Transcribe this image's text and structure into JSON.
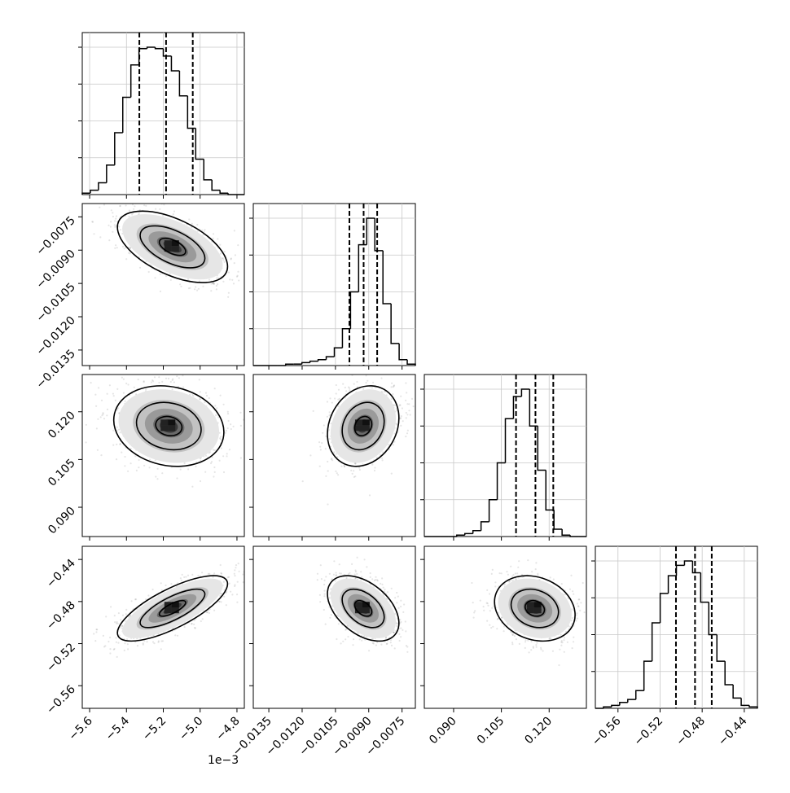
{
  "chart_data": {
    "type": "corner",
    "parameters": [
      {
        "x_ticks": [
          "−5.6",
          "−5.4",
          "−5.2",
          "−5.0",
          "−4.8"
        ],
        "x_tick_values": [
          -5.6,
          -5.4,
          -5.2,
          -5.0,
          -4.8
        ],
        "x_range": [
          -5.64,
          -4.76
        ],
        "offset_label": "1e−3",
        "quantiles": [
          -5.33,
          -5.185,
          -5.04
        ],
        "hist_max": 1.0,
        "hist": [
          0.01,
          0.03,
          0.08,
          0.2,
          0.42,
          0.66,
          0.88,
          0.99,
          1.0,
          0.99,
          0.94,
          0.84,
          0.67,
          0.45,
          0.24,
          0.1,
          0.03,
          0.01,
          0.0,
          0.0
        ]
      },
      {
        "x_ticks": [
          "−0.0135",
          "−0.0120",
          "−0.0105",
          "−0.0090",
          "−0.0075"
        ],
        "x_tick_values": [
          -0.0135,
          -0.012,
          -0.0105,
          -0.009,
          -0.0075
        ],
        "y_ticks": [
          "−0.0075",
          "−0.0090",
          "−0.0105",
          "−0.0120",
          "−0.0135"
        ],
        "x_range": [
          -0.0142,
          -0.0069
        ],
        "quantiles": [
          -0.00987,
          -0.00923,
          -0.00862
        ],
        "hist": [
          0.0,
          0.0,
          0.0,
          0.0,
          0.01,
          0.01,
          0.02,
          0.03,
          0.04,
          0.06,
          0.12,
          0.25,
          0.5,
          0.82,
          1.0,
          0.78,
          0.42,
          0.15,
          0.04,
          0.01
        ]
      },
      {
        "x_ticks": [
          "0.090",
          "0.105",
          "0.120"
        ],
        "x_tick_values": [
          0.09,
          0.105,
          0.12
        ],
        "y_ticks": [
          "0.120",
          "0.105",
          "0.090"
        ],
        "x_range": [
          0.0808,
          0.1317
        ],
        "quantiles": [
          0.1096,
          0.1157,
          0.1213
        ],
        "hist": [
          0.0,
          0.0,
          0.0,
          0.0,
          0.01,
          0.02,
          0.04,
          0.1,
          0.25,
          0.5,
          0.8,
          0.95,
          1.0,
          0.75,
          0.45,
          0.18,
          0.05,
          0.01,
          0.0,
          0.0
        ]
      },
      {
        "x_ticks": [
          "−0.56",
          "−0.52",
          "−0.48",
          "−0.44"
        ],
        "x_tick_values": [
          -0.56,
          -0.52,
          -0.48,
          -0.44
        ],
        "y_ticks": [
          "−0.44",
          "−0.48",
          "−0.52",
          "−0.56"
        ],
        "x_range": [
          -0.5815,
          -0.4275
        ],
        "quantiles": [
          -0.5049,
          -0.4868,
          -0.4709
        ],
        "hist": [
          0.0,
          0.01,
          0.02,
          0.04,
          0.06,
          0.12,
          0.32,
          0.58,
          0.78,
          0.9,
          0.97,
          1.0,
          0.92,
          0.72,
          0.5,
          0.32,
          0.16,
          0.07,
          0.02,
          0.01
        ]
      }
    ],
    "pairs": [
      {
        "x": 0,
        "y": 1,
        "center": [
          -5.15,
          -0.00885
        ],
        "sigma": [
          0.13,
          0.0007
        ],
        "rho": -0.55
      },
      {
        "x": 0,
        "y": 2,
        "center": [
          -5.17,
          0.1155
        ],
        "sigma": [
          0.13,
          0.0055
        ],
        "rho": -0.15
      },
      {
        "x": 1,
        "y": 2,
        "center": [
          -0.00925,
          0.1155
        ],
        "sigma": [
          0.0007,
          0.0055
        ],
        "rho": 0.2
      },
      {
        "x": 0,
        "y": 3,
        "center": [
          -5.15,
          -0.4865
        ],
        "sigma": [
          0.13,
          0.0135
        ],
        "rho": 0.75
      },
      {
        "x": 1,
        "y": 3,
        "center": [
          -0.00925,
          -0.4865
        ],
        "sigma": [
          0.0007,
          0.0135
        ],
        "rho": -0.45
      },
      {
        "x": 2,
        "y": 3,
        "center": [
          0.1155,
          -0.4865
        ],
        "sigma": [
          0.0055,
          0.0135
        ],
        "rho": -0.2
      }
    ]
  }
}
